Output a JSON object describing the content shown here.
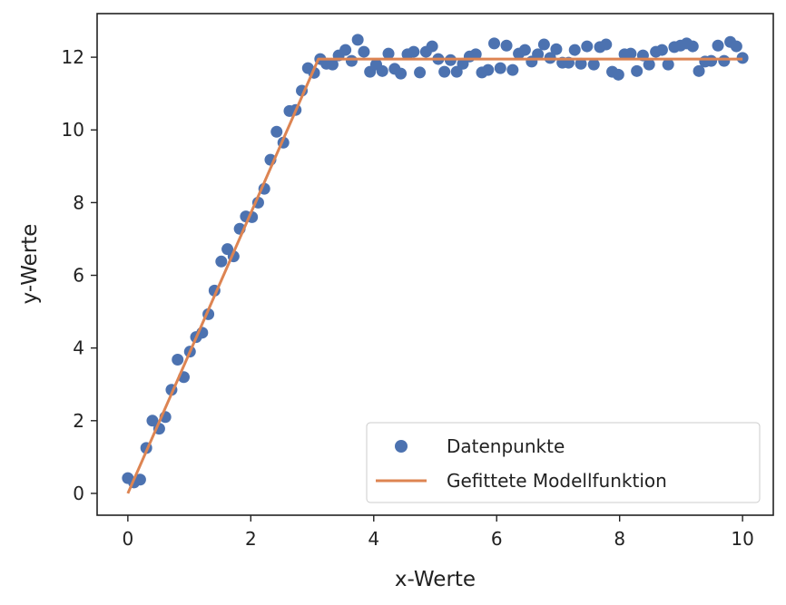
{
  "chart_data": {
    "type": "scatter",
    "xlabel": "x-Werte",
    "ylabel": "y-Werte",
    "xlim": [
      -0.5,
      10.5
    ],
    "ylim": [
      -0.6,
      13.2
    ],
    "xticks": [
      "0",
      "2",
      "4",
      "6",
      "8",
      "10"
    ],
    "yticks": [
      "0",
      "2",
      "4",
      "6",
      "8",
      "10",
      "12"
    ],
    "grid": false,
    "legend_position": "bottom-right",
    "series": [
      {
        "name": "Datenpunkte",
        "kind": "scatter",
        "color": "#4c72b0",
        "x": [
          0.0,
          0.1,
          0.2,
          0.3,
          0.4,
          0.51,
          0.61,
          0.71,
          0.81,
          0.91,
          1.01,
          1.11,
          1.21,
          1.31,
          1.41,
          1.52,
          1.62,
          1.72,
          1.82,
          1.92,
          2.02,
          2.12,
          2.22,
          2.32,
          2.42,
          2.53,
          2.63,
          2.73,
          2.83,
          2.93,
          3.03,
          3.13,
          3.23,
          3.33,
          3.43,
          3.54,
          3.64,
          3.74,
          3.84,
          3.94,
          4.04,
          4.14,
          4.24,
          4.34,
          4.44,
          4.55,
          4.65,
          4.75,
          4.85,
          4.95,
          5.05,
          5.15,
          5.25,
          5.35,
          5.45,
          5.56,
          5.66,
          5.76,
          5.86,
          5.96,
          6.06,
          6.16,
          6.26,
          6.36,
          6.46,
          6.57,
          6.67,
          6.77,
          6.87,
          6.97,
          7.07,
          7.17,
          7.27,
          7.37,
          7.47,
          7.58,
          7.68,
          7.78,
          7.88,
          7.98,
          8.08,
          8.18,
          8.28,
          8.38,
          8.48,
          8.59,
          8.69,
          8.79,
          8.89,
          8.99,
          9.09,
          9.19,
          9.29,
          9.39,
          9.49,
          9.6,
          9.7,
          9.8,
          9.9,
          10.0
        ],
        "y": [
          0.42,
          0.3,
          0.38,
          1.25,
          2.0,
          1.78,
          2.1,
          2.85,
          3.68,
          3.2,
          3.9,
          4.3,
          4.42,
          4.93,
          5.58,
          6.38,
          6.72,
          6.52,
          7.28,
          7.62,
          7.6,
          8.0,
          8.38,
          9.18,
          9.95,
          9.65,
          10.52,
          10.55,
          11.08,
          11.7,
          11.57,
          11.95,
          11.82,
          11.8,
          12.05,
          12.2,
          11.9,
          12.48,
          12.15,
          11.6,
          11.8,
          11.62,
          12.1,
          11.68,
          11.55,
          12.08,
          12.15,
          11.58,
          12.15,
          12.3,
          11.95,
          11.6,
          11.92,
          11.6,
          11.82,
          12.02,
          12.08,
          11.58,
          11.65,
          12.38,
          11.7,
          12.32,
          11.65,
          12.1,
          12.2,
          11.88,
          12.08,
          12.35,
          11.98,
          12.22,
          11.85,
          11.85,
          12.2,
          11.82,
          12.3,
          11.8,
          12.28,
          12.35,
          11.6,
          11.52,
          12.08,
          12.1,
          11.62,
          12.05,
          11.8,
          12.15,
          12.2,
          11.8,
          12.28,
          12.32,
          12.38,
          12.3,
          11.62,
          11.88,
          11.9,
          12.32,
          11.9,
          12.42,
          12.3,
          11.98
        ]
      },
      {
        "name": "Gefittete Modellfunktion",
        "kind": "line",
        "color": "#dd8452",
        "x": [
          0,
          3.1,
          10
        ],
        "y": [
          0,
          11.95,
          11.95
        ]
      }
    ]
  }
}
